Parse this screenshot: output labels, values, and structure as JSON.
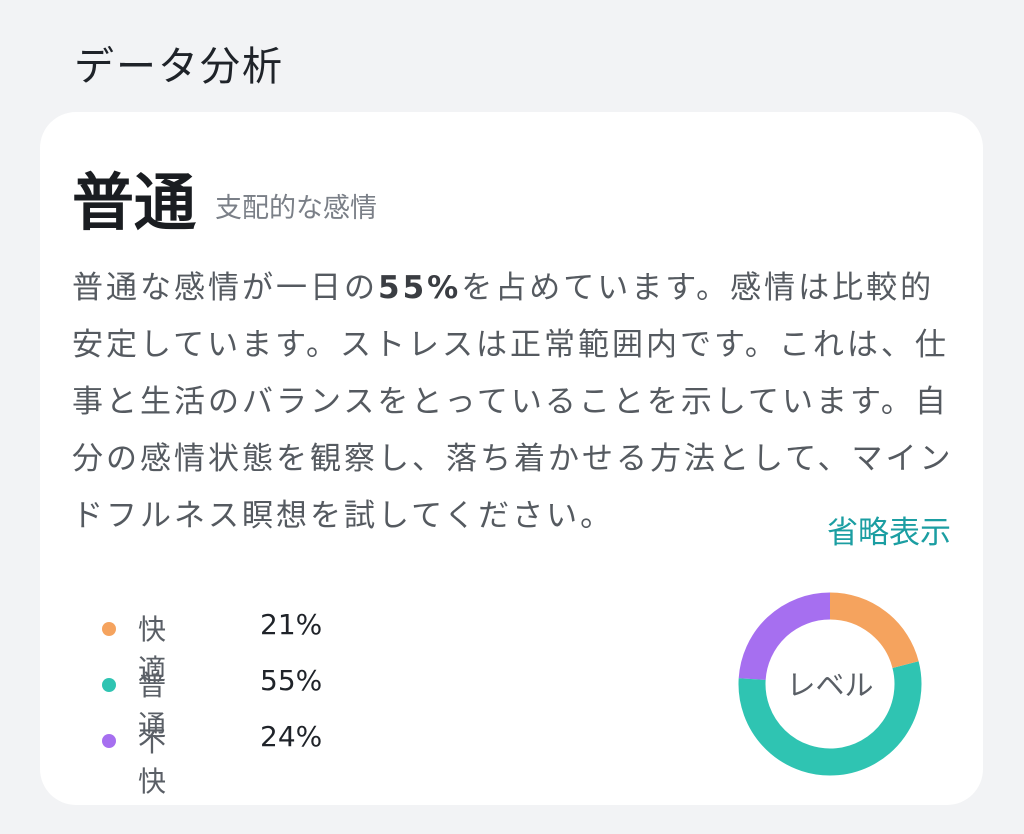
{
  "header": {
    "title": "データ分析"
  },
  "summary": {
    "emotion": "普通",
    "caption": "支配的な感情"
  },
  "description": {
    "parts": [
      "普通な感情が一日の",
      "55%",
      "を占めています。感情は比較的安定しています。ストレスは正常範囲内です。これは、仕事と生活のバランスをとっていることを示しています。自分の感情状態を観察し、落ち着かせる方法として、マインドフルネス瞑想を試してください。"
    ],
    "toggle": "省略表示"
  },
  "chart_data": {
    "type": "donut",
    "center_label": "レベル",
    "categories": [
      "快適",
      "普通",
      "不快"
    ],
    "values": [
      21,
      55,
      24
    ],
    "value_labels": [
      "21%",
      "55%",
      "24%"
    ],
    "colors": [
      "#f5a35e",
      "#2fc4b2",
      "#a66ff0"
    ]
  }
}
